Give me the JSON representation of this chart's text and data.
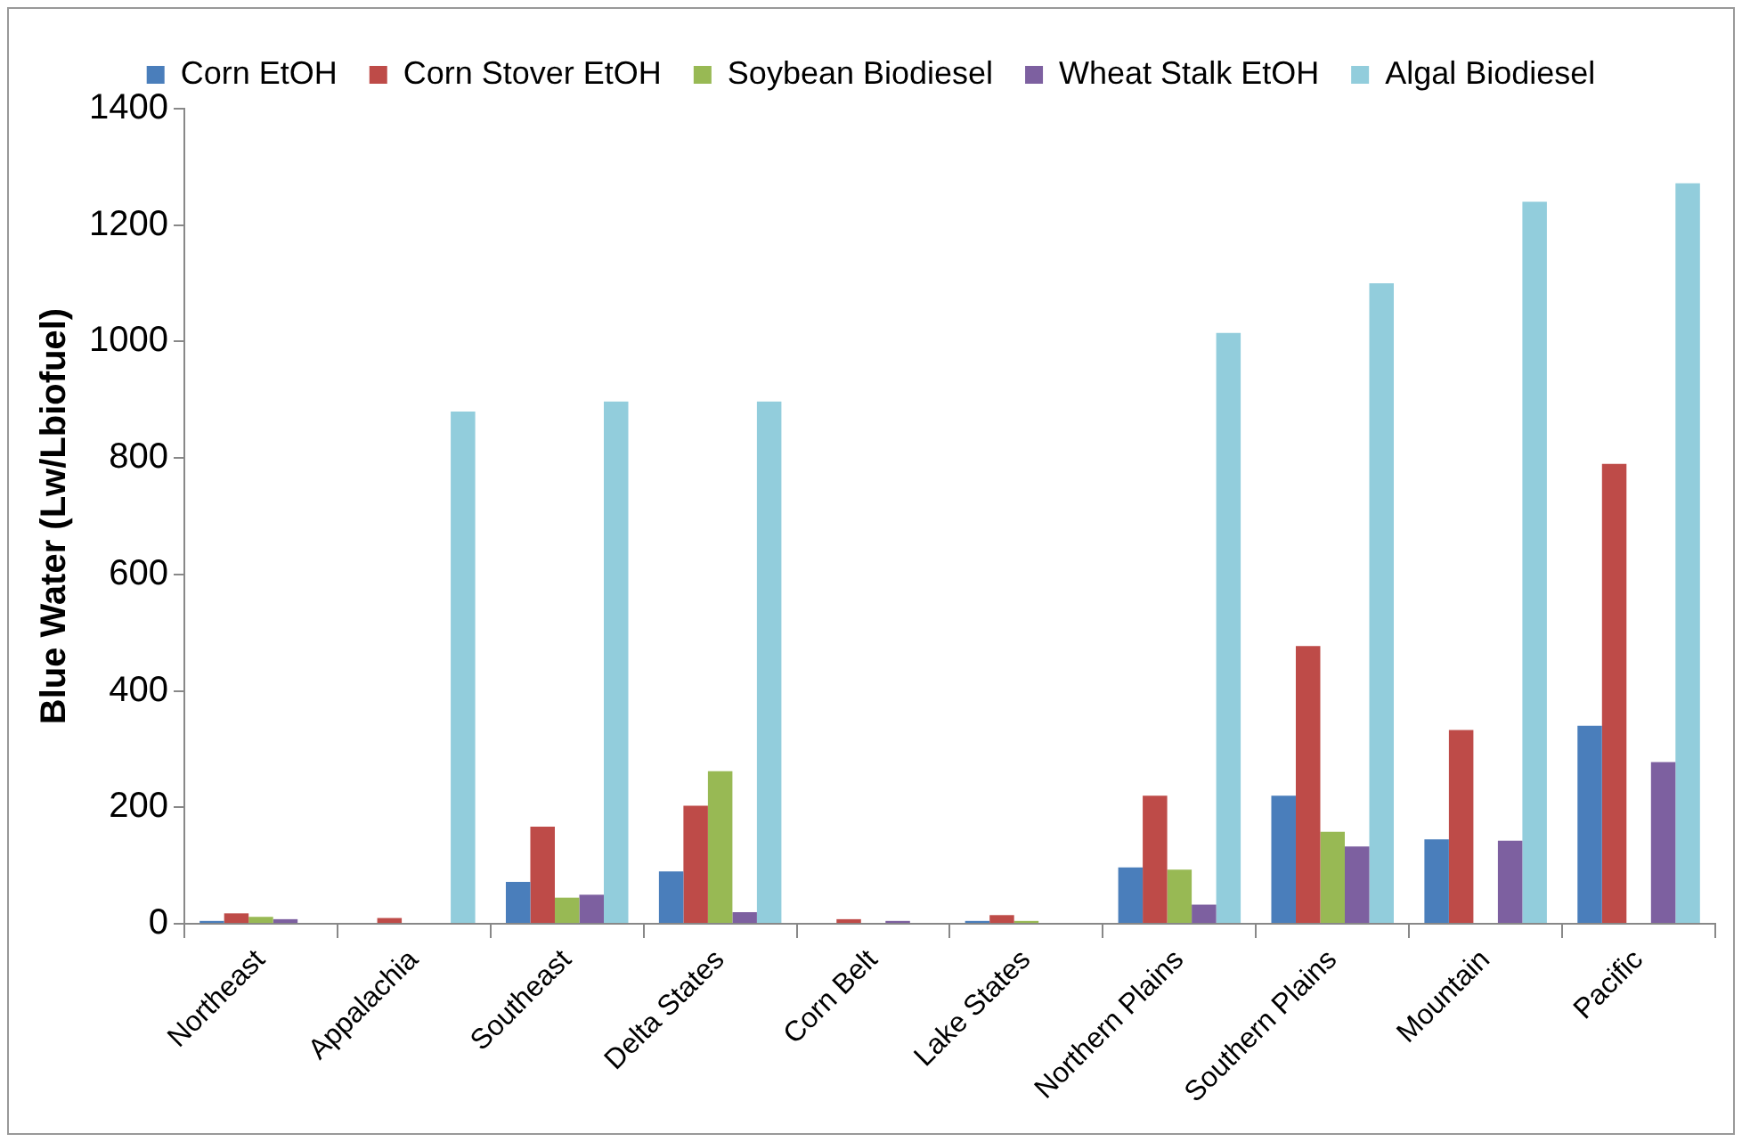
{
  "chart_data": {
    "type": "bar",
    "ylabel": "Blue Water (Lw/Lbiofuel)",
    "categories": [
      "Northeast",
      "Appalachia",
      "Southeast",
      "Delta States",
      "Corn Belt",
      "Lake States",
      "Northern Plains",
      "Southern Plains",
      "Mountain",
      "Pacific"
    ],
    "series": [
      {
        "name": "Corn EtOH",
        "color": "#4a7ebb",
        "values": [
          5,
          0,
          72,
          90,
          null,
          5,
          97,
          220,
          145,
          340
        ]
      },
      {
        "name": "Corn Stover EtOH",
        "color": "#be4b48",
        "values": [
          18,
          10,
          167,
          203,
          8,
          15,
          220,
          477,
          333,
          790
        ]
      },
      {
        "name": "Soybean Biodiesel",
        "color": "#98b954",
        "values": [
          12,
          null,
          45,
          262,
          null,
          5,
          93,
          158,
          0,
          0
        ]
      },
      {
        "name": "Wheat Stalk EtOH",
        "color": "#7d60a0",
        "values": [
          8,
          0,
          50,
          20,
          5,
          0,
          33,
          133,
          143,
          278
        ]
      },
      {
        "name": "Algal Biodiesel",
        "color": "#92cddc",
        "values": [
          0,
          880,
          897,
          897,
          0,
          0,
          1015,
          1100,
          1240,
          1272
        ]
      }
    ],
    "ylim": [
      0,
      1400
    ],
    "yticks": [
      0,
      200,
      400,
      600,
      800,
      1000,
      1200,
      1400
    ],
    "grid": false,
    "legend": "top"
  }
}
